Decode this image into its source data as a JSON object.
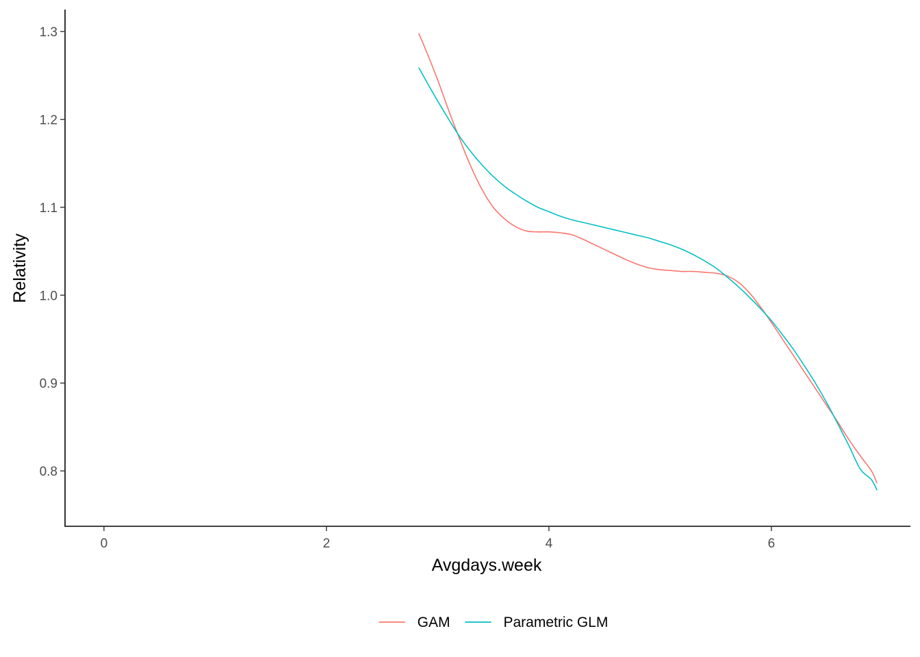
{
  "chart_data": {
    "type": "line",
    "title": "",
    "xlabel": "Avgdays.week",
    "ylabel": "Relativity",
    "xlim": [
      -0.35,
      7.25
    ],
    "ylim": [
      0.737,
      1.325
    ],
    "xticks": [
      0,
      2,
      4,
      6
    ],
    "yticks": [
      0.8,
      0.9,
      1.0,
      1.1,
      1.2,
      1.3
    ],
    "xtick_labels": [
      "0",
      "2",
      "4",
      "6"
    ],
    "ytick_labels": [
      "0.8",
      "0.9",
      "1.0",
      "1.1",
      "1.2",
      "1.3"
    ],
    "grid": false,
    "legend_position": "bottom",
    "series": [
      {
        "name": "GAM",
        "color": "#F8766D",
        "x": [
          2.83,
          2.9,
          3.0,
          3.1,
          3.2,
          3.3,
          3.4,
          3.5,
          3.6,
          3.7,
          3.8,
          3.9,
          4.0,
          4.1,
          4.2,
          4.3,
          4.4,
          4.5,
          4.6,
          4.7,
          4.8,
          4.9,
          5.0,
          5.1,
          5.2,
          5.3,
          5.4,
          5.5,
          5.6,
          5.7,
          5.8,
          5.9,
          6.0,
          6.1,
          6.2,
          6.3,
          6.4,
          6.5,
          6.6,
          6.7,
          6.8,
          6.9,
          6.95
        ],
        "y": [
          1.298,
          1.277,
          1.245,
          1.21,
          1.177,
          1.146,
          1.12,
          1.1,
          1.087,
          1.078,
          1.073,
          1.072,
          1.072,
          1.071,
          1.069,
          1.064,
          1.058,
          1.052,
          1.046,
          1.04,
          1.035,
          1.031,
          1.029,
          1.028,
          1.027,
          1.027,
          1.026,
          1.025,
          1.022,
          1.015,
          1.003,
          0.987,
          0.969,
          0.95,
          0.931,
          0.912,
          0.893,
          0.874,
          0.855,
          0.835,
          0.817,
          0.8,
          0.786
        ]
      },
      {
        "name": "Parametric GLM",
        "color": "#00BFC4",
        "x": [
          2.83,
          2.9,
          3.0,
          3.1,
          3.2,
          3.3,
          3.4,
          3.5,
          3.6,
          3.7,
          3.8,
          3.9,
          4.0,
          4.1,
          4.2,
          4.3,
          4.4,
          4.5,
          4.6,
          4.7,
          4.8,
          4.9,
          5.0,
          5.1,
          5.2,
          5.3,
          5.4,
          5.5,
          5.6,
          5.7,
          5.8,
          5.9,
          6.0,
          6.1,
          6.2,
          6.3,
          6.4,
          6.5,
          6.6,
          6.7,
          6.8,
          6.9,
          6.95
        ],
        "y": [
          1.259,
          1.243,
          1.221,
          1.2,
          1.18,
          1.163,
          1.148,
          1.135,
          1.124,
          1.115,
          1.107,
          1.1,
          1.095,
          1.09,
          1.086,
          1.083,
          1.08,
          1.077,
          1.074,
          1.071,
          1.068,
          1.065,
          1.061,
          1.057,
          1.052,
          1.046,
          1.039,
          1.031,
          1.021,
          1.01,
          0.998,
          0.985,
          0.971,
          0.955,
          0.938,
          0.919,
          0.899,
          0.877,
          0.853,
          0.828,
          0.802,
          0.79,
          0.778
        ]
      }
    ]
  }
}
